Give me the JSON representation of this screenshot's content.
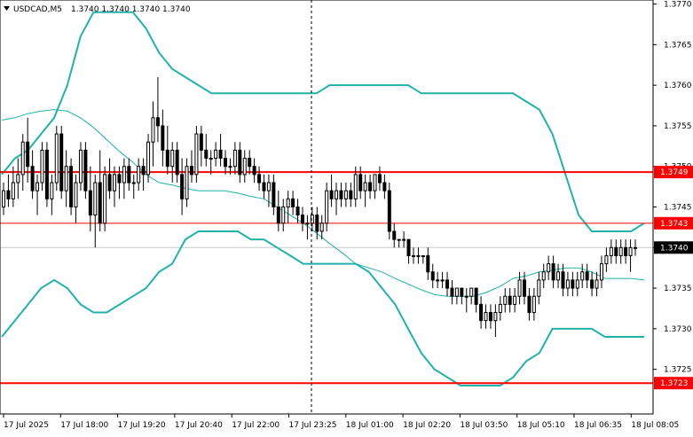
{
  "header": {
    "symbol_label": "USDCAD,M5",
    "ohlc_label": "1.3740 1.3740 1.3740 1.3740",
    "menu_icon": "triangle-down-icon"
  },
  "colors": {
    "background": "#ffffff",
    "candle": "#000000",
    "bollinger": "#20b2aa",
    "level_line": "#ff0000",
    "level_label_bg": "#ff0000",
    "level_label_text": "#ffffff",
    "grid": "#c8c8c8",
    "current_price_bg": "#000000",
    "current_price_text": "#ffffff"
  },
  "chart_data": {
    "type": "candlestick",
    "symbol": "USDCAD",
    "timeframe": "M5",
    "ylim": [
      1.37195,
      1.37705
    ],
    "y_ticks": [
      "1.3770",
      "1.3765",
      "1.3760",
      "1.3755",
      "1.3750",
      "1.3745",
      "1.3740",
      "1.3735",
      "1.3730",
      "1.3725"
    ],
    "x_ticks": [
      "17 Jul 2025",
      "17 Jul 18:00",
      "17 Jul 19:20",
      "17 Jul 20:40",
      "17 Jul 22:00",
      "17 Jul 23:25",
      "18 Jul 01:00",
      "18 Jul 02:20",
      "18 Jul 03:50",
      "18 Jul 05:10",
      "18 Jul 06:35",
      "18 Jul 08:05"
    ],
    "current_price": "1.3740",
    "levels": [
      {
        "label": "1.3749",
        "value": 1.37493,
        "style": "thick"
      },
      {
        "label": "1.3743",
        "value": 1.3743,
        "style": "thin"
      },
      {
        "label": "1.3723",
        "value": 1.37233,
        "style": "thick"
      }
    ],
    "bollinger_upper": [
      1.3749,
      1.3751,
      1.3752,
      1.3754,
      1.3756,
      1.376,
      1.3766,
      1.3769,
      1.3769,
      1.3769,
      1.3769,
      1.3767,
      1.3764,
      1.3762,
      1.3761,
      1.376,
      1.3759,
      1.3759,
      1.3759,
      1.3759,
      1.3759,
      1.3759,
      1.3759,
      1.3759,
      1.3759,
      1.376,
      1.376,
      1.376,
      1.376,
      1.376,
      1.376,
      1.376,
      1.3759,
      1.3759,
      1.3759,
      1.3759,
      1.3759,
      1.3759,
      1.3759,
      1.3759,
      1.3758,
      1.3757,
      1.3754,
      1.3749,
      1.3744,
      1.3742,
      1.3742,
      1.3742,
      1.3742,
      1.3743
    ],
    "bollinger_middle": [
      1.37557,
      1.3756,
      1.37565,
      1.37568,
      1.3757,
      1.37568,
      1.3756,
      1.37548,
      1.37533,
      1.37518,
      1.37505,
      1.3749,
      1.3748,
      1.37477,
      1.37473,
      1.3747,
      1.3747,
      1.3747,
      1.37467,
      1.37463,
      1.3746,
      1.3745,
      1.3744,
      1.3743,
      1.37418,
      1.37405,
      1.37393,
      1.3738,
      1.37375,
      1.3737,
      1.37362,
      1.37355,
      1.37348,
      1.37342,
      1.3734,
      1.3734,
      1.3734,
      1.37345,
      1.37352,
      1.37362,
      1.37365,
      1.3737,
      1.37372,
      1.37375,
      1.37375,
      1.3737,
      1.37362,
      1.37362,
      1.37362,
      1.3736
    ],
    "bollinger_lower": [
      1.3729,
      1.3731,
      1.3733,
      1.3735,
      1.3736,
      1.3735,
      1.3733,
      1.3732,
      1.3732,
      1.3733,
      1.3734,
      1.3735,
      1.3737,
      1.3738,
      1.3741,
      1.3742,
      1.3742,
      1.3742,
      1.3742,
      1.3741,
      1.3741,
      1.374,
      1.3739,
      1.3738,
      1.3738,
      1.3738,
      1.3738,
      1.3738,
      1.3737,
      1.3735,
      1.3733,
      1.373,
      1.3727,
      1.3725,
      1.3724,
      1.3723,
      1.3723,
      1.3723,
      1.3723,
      1.3724,
      1.3726,
      1.3727,
      1.373,
      1.373,
      1.373,
      1.373,
      1.3729,
      1.3729,
      1.3729,
      1.3729
    ],
    "candles": [
      [
        1.3745,
        1.3748,
        1.3744,
        1.3747
      ],
      [
        1.3747,
        1.3749,
        1.3745,
        1.3746
      ],
      [
        1.3746,
        1.375,
        1.3745,
        1.3748
      ],
      [
        1.3748,
        1.3751,
        1.3746,
        1.3749
      ],
      [
        1.3749,
        1.3754,
        1.3747,
        1.3753
      ],
      [
        1.3753,
        1.3756,
        1.3748,
        1.375
      ],
      [
        1.375,
        1.3752,
        1.3746,
        1.3747
      ],
      [
        1.3747,
        1.3749,
        1.3744,
        1.3748
      ],
      [
        1.3748,
        1.3753,
        1.3747,
        1.3752
      ],
      [
        1.3752,
        1.3753,
        1.3745,
        1.3746
      ],
      [
        1.3746,
        1.3749,
        1.3744,
        1.3748
      ],
      [
        1.3748,
        1.3755,
        1.3747,
        1.3754
      ],
      [
        1.3754,
        1.3755,
        1.3746,
        1.3747
      ],
      [
        1.3747,
        1.3752,
        1.3745,
        1.375
      ],
      [
        1.375,
        1.3751,
        1.3744,
        1.3745
      ],
      [
        1.3745,
        1.3749,
        1.3743,
        1.3748
      ],
      [
        1.3748,
        1.3753,
        1.3747,
        1.3752
      ],
      [
        1.3752,
        1.3753,
        1.3746,
        1.3747
      ],
      [
        1.3747,
        1.375,
        1.3742,
        1.3744
      ],
      [
        1.3744,
        1.3749,
        1.374,
        1.3748
      ],
      [
        1.3748,
        1.3752,
        1.3742,
        1.3743
      ],
      [
        1.3743,
        1.375,
        1.3742,
        1.3749
      ],
      [
        1.3749,
        1.3751,
        1.3746,
        1.3747
      ],
      [
        1.3747,
        1.375,
        1.3745,
        1.3749
      ],
      [
        1.3749,
        1.375,
        1.3746,
        1.3748
      ],
      [
        1.3748,
        1.3751,
        1.3746,
        1.375
      ],
      [
        1.375,
        1.3751,
        1.3747,
        1.3748
      ],
      [
        1.3748,
        1.3749,
        1.3746,
        1.3748
      ],
      [
        1.3748,
        1.3751,
        1.3747,
        1.375
      ],
      [
        1.375,
        1.3751,
        1.3747,
        1.3749
      ],
      [
        1.3749,
        1.3754,
        1.3748,
        1.3753
      ],
      [
        1.3753,
        1.3758,
        1.375,
        1.3756
      ],
      [
        1.3756,
        1.3761,
        1.3753,
        1.3755
      ],
      [
        1.3755,
        1.3757,
        1.375,
        1.3752
      ],
      [
        1.3752,
        1.3755,
        1.3749,
        1.375
      ],
      [
        1.375,
        1.3753,
        1.3748,
        1.3752
      ],
      [
        1.3752,
        1.3753,
        1.3748,
        1.3749
      ],
      [
        1.3749,
        1.3751,
        1.3744,
        1.3746
      ],
      [
        1.3746,
        1.3751,
        1.3745,
        1.375
      ],
      [
        1.375,
        1.3752,
        1.3748,
        1.3749
      ],
      [
        1.3749,
        1.3755,
        1.3748,
        1.3754
      ],
      [
        1.3754,
        1.3755,
        1.375,
        1.3752
      ],
      [
        1.3752,
        1.3754,
        1.375,
        1.3751
      ],
      [
        1.3751,
        1.3752,
        1.3749,
        1.3751
      ],
      [
        1.3751,
        1.3753,
        1.375,
        1.3752
      ],
      [
        1.3752,
        1.3754,
        1.375,
        1.3751
      ],
      [
        1.3751,
        1.3752,
        1.3749,
        1.375
      ],
      [
        1.375,
        1.3751,
        1.3749,
        1.375
      ],
      [
        1.375,
        1.3753,
        1.3749,
        1.3752
      ],
      [
        1.3752,
        1.3753,
        1.3748,
        1.3749
      ],
      [
        1.3749,
        1.3752,
        1.3748,
        1.3751
      ],
      [
        1.3751,
        1.3752,
        1.3749,
        1.375
      ],
      [
        1.375,
        1.3751,
        1.3748,
        1.3749
      ],
      [
        1.3749,
        1.375,
        1.3747,
        1.3748
      ],
      [
        1.3748,
        1.3749,
        1.3746,
        1.3747
      ],
      [
        1.3747,
        1.3749,
        1.3745,
        1.3748
      ],
      [
        1.3748,
        1.3749,
        1.3744,
        1.3745
      ],
      [
        1.3745,
        1.3747,
        1.3742,
        1.3743
      ],
      [
        1.3743,
        1.3746,
        1.3742,
        1.3745
      ],
      [
        1.3745,
        1.3747,
        1.3743,
        1.3746
      ],
      [
        1.3746,
        1.3747,
        1.3744,
        1.3745
      ],
      [
        1.3745,
        1.3746,
        1.3743,
        1.3744
      ],
      [
        1.3744,
        1.3745,
        1.3742,
        1.3743
      ],
      [
        1.3743,
        1.3744,
        1.3741,
        1.3743
      ],
      [
        1.3743,
        1.3745,
        1.3742,
        1.3744
      ],
      [
        1.3744,
        1.3745,
        1.3741,
        1.3742
      ],
      [
        1.3742,
        1.3744,
        1.3741,
        1.3743
      ],
      [
        1.3743,
        1.3748,
        1.3742,
        1.3747
      ],
      [
        1.3747,
        1.3749,
        1.3745,
        1.3746
      ],
      [
        1.3746,
        1.3748,
        1.3744,
        1.3747
      ],
      [
        1.3747,
        1.3748,
        1.3745,
        1.3746
      ],
      [
        1.3746,
        1.3748,
        1.3745,
        1.3747
      ],
      [
        1.3747,
        1.3748,
        1.3745,
        1.3746
      ],
      [
        1.3746,
        1.375,
        1.3745,
        1.3749
      ],
      [
        1.3749,
        1.375,
        1.3746,
        1.3747
      ],
      [
        1.3747,
        1.3749,
        1.3745,
        1.3748
      ],
      [
        1.3748,
        1.3749,
        1.3746,
        1.3747
      ],
      [
        1.3747,
        1.3749,
        1.3746,
        1.3749
      ],
      [
        1.3749,
        1.375,
        1.3747,
        1.3748
      ],
      [
        1.3748,
        1.3749,
        1.3746,
        1.3747
      ],
      [
        1.3747,
        1.3748,
        1.3741,
        1.3742
      ],
      [
        1.3742,
        1.3743,
        1.374,
        1.3741
      ],
      [
        1.3741,
        1.3741,
        1.374,
        1.3741
      ],
      [
        1.3741,
        1.3742,
        1.374,
        1.3741
      ],
      [
        1.3741,
        1.3741,
        1.3738,
        1.3739
      ],
      [
        1.3739,
        1.374,
        1.3738,
        1.3739
      ],
      [
        1.3739,
        1.374,
        1.3738,
        1.3739
      ],
      [
        1.3739,
        1.3739,
        1.3738,
        1.3739
      ],
      [
        1.3739,
        1.374,
        1.3736,
        1.3737
      ],
      [
        1.3737,
        1.3738,
        1.3735,
        1.3736
      ],
      [
        1.3736,
        1.3737,
        1.3735,
        1.3736
      ],
      [
        1.3736,
        1.3737,
        1.3735,
        1.3736
      ],
      [
        1.3736,
        1.3737,
        1.3734,
        1.3735
      ],
      [
        1.3735,
        1.3736,
        1.3733,
        1.3734
      ],
      [
        1.3734,
        1.3735,
        1.3733,
        1.3735
      ],
      [
        1.3735,
        1.3735,
        1.3733,
        1.3734
      ],
      [
        1.3734,
        1.3735,
        1.3732,
        1.3734
      ],
      [
        1.3734,
        1.3735,
        1.3733,
        1.3735
      ],
      [
        1.3735,
        1.3735,
        1.3732,
        1.3733
      ],
      [
        1.3733,
        1.3734,
        1.373,
        1.3731
      ],
      [
        1.3731,
        1.3733,
        1.373,
        1.3732
      ],
      [
        1.3732,
        1.3733,
        1.373,
        1.3731
      ],
      [
        1.3731,
        1.3733,
        1.3729,
        1.3732
      ],
      [
        1.3732,
        1.3734,
        1.3731,
        1.3733
      ],
      [
        1.3733,
        1.3735,
        1.3732,
        1.3734
      ],
      [
        1.3734,
        1.3735,
        1.3732,
        1.3733
      ],
      [
        1.3733,
        1.3735,
        1.3732,
        1.3734
      ],
      [
        1.3734,
        1.3737,
        1.3733,
        1.3736
      ],
      [
        1.3736,
        1.3737,
        1.3733,
        1.3734
      ],
      [
        1.3734,
        1.3735,
        1.3731,
        1.3732
      ],
      [
        1.3732,
        1.3735,
        1.3731,
        1.3734
      ],
      [
        1.3734,
        1.3737,
        1.3733,
        1.3736
      ],
      [
        1.3736,
        1.3738,
        1.3735,
        1.3737
      ],
      [
        1.3737,
        1.3739,
        1.3736,
        1.3738
      ],
      [
        1.3738,
        1.3739,
        1.3735,
        1.3736
      ],
      [
        1.3736,
        1.3738,
        1.3735,
        1.3737
      ],
      [
        1.3737,
        1.3738,
        1.3734,
        1.3735
      ],
      [
        1.3735,
        1.3737,
        1.3734,
        1.3736
      ],
      [
        1.3736,
        1.3737,
        1.3734,
        1.3735
      ],
      [
        1.3735,
        1.3737,
        1.3734,
        1.3736
      ],
      [
        1.3736,
        1.3738,
        1.3735,
        1.3737
      ],
      [
        1.3737,
        1.3738,
        1.3735,
        1.3736
      ],
      [
        1.3736,
        1.3737,
        1.3734,
        1.3735
      ],
      [
        1.3735,
        1.3737,
        1.3734,
        1.3736
      ],
      [
        1.3736,
        1.3739,
        1.3735,
        1.3738
      ],
      [
        1.3738,
        1.374,
        1.3737,
        1.3739
      ],
      [
        1.3739,
        1.3741,
        1.3738,
        1.374
      ],
      [
        1.374,
        1.3741,
        1.3738,
        1.3739
      ],
      [
        1.3739,
        1.3741,
        1.3738,
        1.374
      ],
      [
        1.374,
        1.3741,
        1.3738,
        1.3739
      ],
      [
        1.3739,
        1.3741,
        1.3737,
        1.374
      ],
      [
        1.374,
        1.3741,
        1.3739,
        1.374
      ]
    ]
  }
}
